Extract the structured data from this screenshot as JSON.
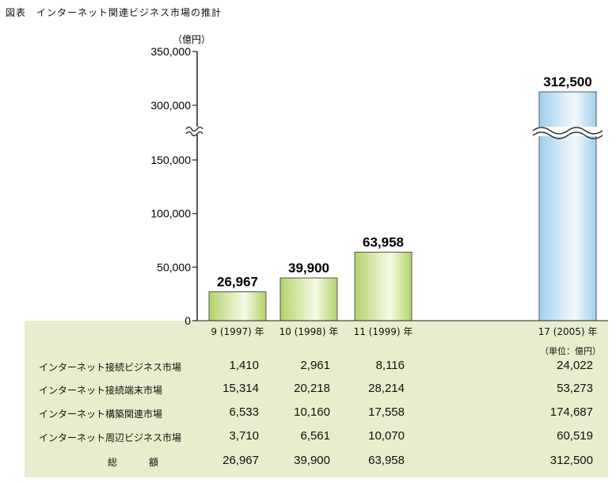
{
  "figure_title": "図表　インターネット関連ビジネス市場の推計",
  "chart_data": {
    "type": "bar",
    "unit_label": "（億円）",
    "categories": [
      "9 (1997) 年",
      "10 (1998) 年",
      "11 (1999) 年",
      "17 (2005) 年"
    ],
    "values": [
      26967,
      39900,
      63958,
      312500
    ],
    "value_labels": [
      "26,967",
      "39,900",
      "63,958",
      "312,500"
    ],
    "y_ticks": [
      "0",
      "50,000",
      "100,000",
      "150,000",
      "300,000",
      "350,000"
    ],
    "y_tick_values": [
      0,
      50000,
      100000,
      150000,
      300000,
      350000
    ],
    "axis_break": [
      160000,
      290000
    ],
    "ylim": [
      0,
      350000
    ],
    "colors": {
      "green_bar": "#b3d26a",
      "blue_bar": "#9fd0ee"
    }
  },
  "table": {
    "unit_note": "（単位：億円）",
    "rows": [
      {
        "label": "インターネット接続ビジネス市場",
        "values": [
          "1,410",
          "2,961",
          "8,116",
          "24,022"
        ]
      },
      {
        "label": "インターネット接続端末市場",
        "values": [
          "15,314",
          "20,218",
          "28,214",
          "53,273"
        ]
      },
      {
        "label": "インターネット構築関連市場",
        "values": [
          "6,533",
          "10,160",
          "17,558",
          "174,687"
        ]
      },
      {
        "label": "インターネット周辺ビジネス市場",
        "values": [
          "3,710",
          "6,561",
          "10,070",
          "60,519"
        ]
      }
    ],
    "total_label": "総　額",
    "total_values": [
      "26,967",
      "39,900",
      "63,958",
      "312,500"
    ]
  }
}
